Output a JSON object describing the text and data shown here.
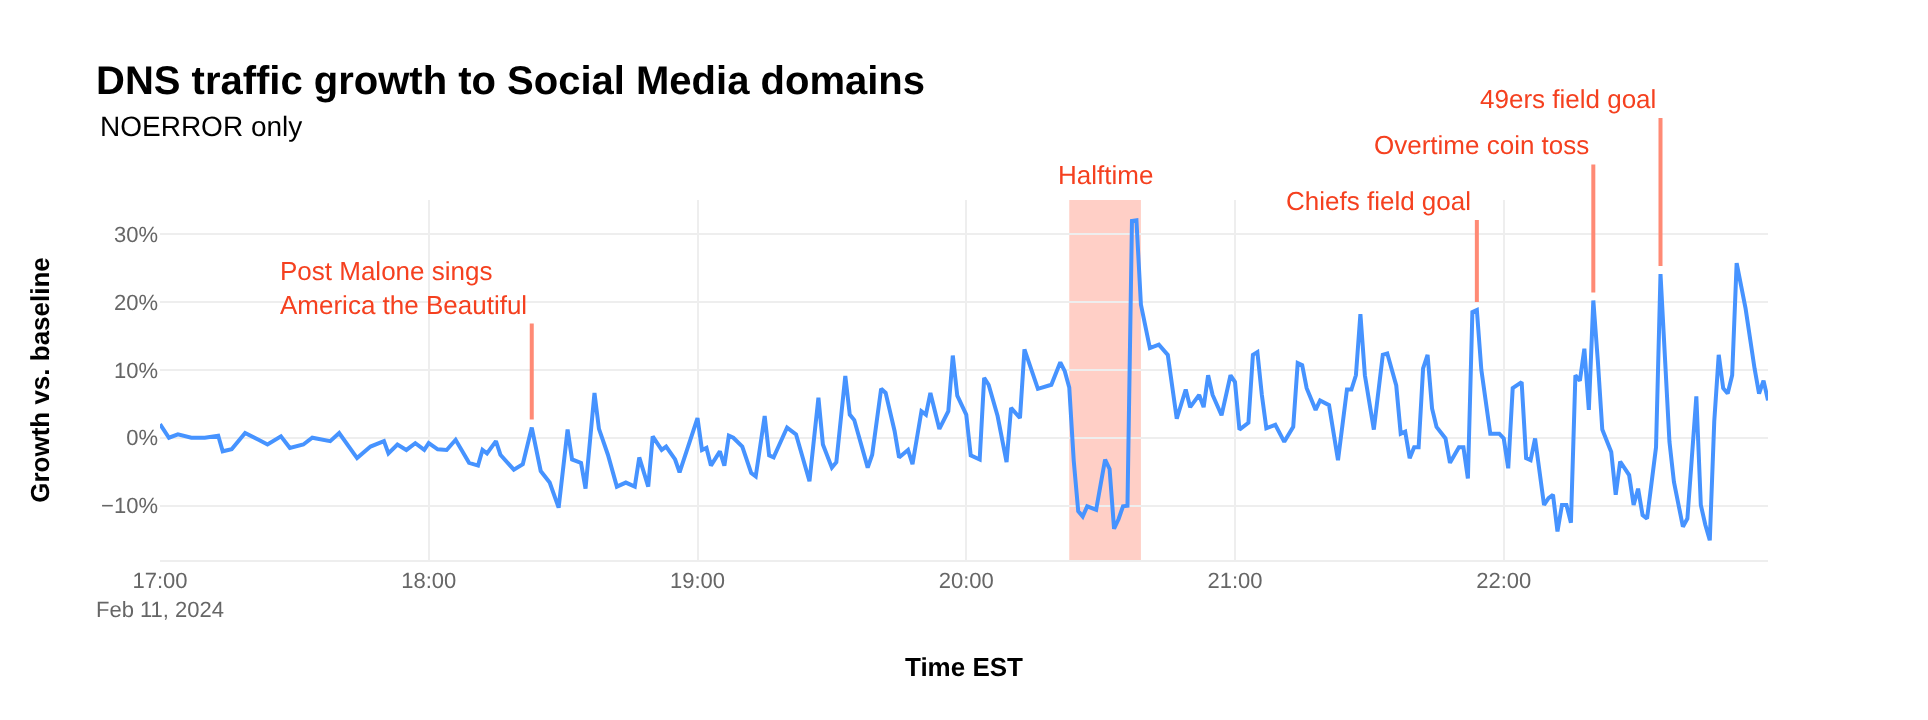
{
  "chart_data": {
    "type": "line",
    "title": "DNS traffic growth to Social Media domains",
    "subtitle": "NOERROR only",
    "xlabel": "Time EST",
    "ylabel": "Growth vs. baseline",
    "x": [
      "2024-02-11T17:00",
      "2024-02-11T17:02",
      "2024-02-11T17:04",
      "2024-02-11T17:07",
      "2024-02-11T17:10",
      "2024-02-11T17:13",
      "2024-02-11T17:14",
      "2024-02-11T17:16",
      "2024-02-11T17:19",
      "2024-02-11T17:22",
      "2024-02-11T17:24",
      "2024-02-11T17:27",
      "2024-02-11T17:29",
      "2024-02-11T17:32",
      "2024-02-11T17:34",
      "2024-02-11T17:38",
      "2024-02-11T17:40",
      "2024-02-11T17:44",
      "2024-02-11T17:47",
      "2024-02-11T17:50",
      "2024-02-11T17:51",
      "2024-02-11T17:53",
      "2024-02-11T17:55",
      "2024-02-11T17:57",
      "2024-02-11T17:59",
      "2024-02-11T18:00",
      "2024-02-11T18:02",
      "2024-02-11T18:04",
      "2024-02-11T18:06",
      "2024-02-11T18:09",
      "2024-02-11T18:11",
      "2024-02-11T18:12",
      "2024-02-11T18:13",
      "2024-02-11T18:15",
      "2024-02-11T18:16",
      "2024-02-11T18:19",
      "2024-02-11T18:21",
      "2024-02-11T18:23",
      "2024-02-11T18:25",
      "2024-02-11T18:27",
      "2024-02-11T18:29",
      "2024-02-11T18:31",
      "2024-02-11T18:32",
      "2024-02-11T18:34",
      "2024-02-11T18:35",
      "2024-02-11T18:37",
      "2024-02-11T18:38",
      "2024-02-11T18:40",
      "2024-02-11T18:42",
      "2024-02-11T18:44",
      "2024-02-11T18:46",
      "2024-02-11T18:47",
      "2024-02-11T18:49",
      "2024-02-11T18:50",
      "2024-02-11T18:52",
      "2024-02-11T18:53",
      "2024-02-11T18:55",
      "2024-02-11T18:56",
      "2024-02-11T19:00",
      "2024-02-11T19:01",
      "2024-02-11T19:02",
      "2024-02-11T19:03",
      "2024-02-11T19:05",
      "2024-02-11T19:06",
      "2024-02-11T19:07",
      "2024-02-11T19:08",
      "2024-02-11T19:10",
      "2024-02-11T19:12",
      "2024-02-11T19:13",
      "2024-02-11T19:15",
      "2024-02-11T19:16",
      "2024-02-11T19:17",
      "2024-02-11T19:20",
      "2024-02-11T19:22",
      "2024-02-11T19:23",
      "2024-02-11T19:25",
      "2024-02-11T19:27",
      "2024-02-11T19:28",
      "2024-02-11T19:30",
      "2024-02-11T19:31",
      "2024-02-11T19:33",
      "2024-02-11T19:34",
      "2024-02-11T19:35",
      "2024-02-11T19:38",
      "2024-02-11T19:39",
      "2024-02-11T19:41",
      "2024-02-11T19:42",
      "2024-02-11T19:44",
      "2024-02-11T19:45",
      "2024-02-11T19:47",
      "2024-02-11T19:48",
      "2024-02-11T19:50",
      "2024-02-11T19:51",
      "2024-02-11T19:52",
      "2024-02-11T19:54",
      "2024-02-11T19:56",
      "2024-02-11T19:57",
      "2024-02-11T19:58",
      "2024-02-11T20:00",
      "2024-02-11T20:01",
      "2024-02-11T20:03",
      "2024-02-11T20:04",
      "2024-02-11T20:05",
      "2024-02-11T20:07",
      "2024-02-11T20:09",
      "2024-02-11T20:10",
      "2024-02-11T20:12",
      "2024-02-11T20:13",
      "2024-02-11T20:16",
      "2024-02-11T20:19",
      "2024-02-11T20:21",
      "2024-02-11T20:22",
      "2024-02-11T20:23",
      "2024-02-11T20:24",
      "2024-02-11T20:25",
      "2024-02-11T20:26",
      "2024-02-11T20:27",
      "2024-02-11T20:29",
      "2024-02-11T20:30",
      "2024-02-11T20:31",
      "2024-02-11T20:32",
      "2024-02-11T20:33",
      "2024-02-11T20:34",
      "2024-02-11T20:35",
      "2024-02-11T20:36",
      "2024-02-11T20:37",
      "2024-02-11T20:38",
      "2024-02-11T20:39",
      "2024-02-11T20:41",
      "2024-02-11T20:43",
      "2024-02-11T20:45",
      "2024-02-11T20:47",
      "2024-02-11T20:49",
      "2024-02-11T20:50",
      "2024-02-11T20:52",
      "2024-02-11T20:53",
      "2024-02-11T20:54",
      "2024-02-11T20:55",
      "2024-02-11T20:57",
      "2024-02-11T20:59",
      "2024-02-11T21:00",
      "2024-02-11T21:01",
      "2024-02-11T21:03",
      "2024-02-11T21:04",
      "2024-02-11T21:05",
      "2024-02-11T21:06",
      "2024-02-11T21:07",
      "2024-02-11T21:09",
      "2024-02-11T21:11",
      "2024-02-11T21:13",
      "2024-02-11T21:14",
      "2024-02-11T21:15",
      "2024-02-11T21:16",
      "2024-02-11T21:18",
      "2024-02-11T21:19",
      "2024-02-11T21:21",
      "2024-02-11T21:23",
      "2024-02-11T21:25",
      "2024-02-11T21:26",
      "2024-02-11T21:27",
      "2024-02-11T21:28",
      "2024-02-11T21:29",
      "2024-02-11T21:31",
      "2024-02-11T21:33",
      "2024-02-11T21:34",
      "2024-02-11T21:36",
      "2024-02-11T21:37",
      "2024-02-11T21:38",
      "2024-02-11T21:39",
      "2024-02-11T21:40",
      "2024-02-11T21:41",
      "2024-02-11T21:42",
      "2024-02-11T21:43",
      "2024-02-11T21:44",
      "2024-02-11T21:45",
      "2024-02-11T21:47",
      "2024-02-11T21:48",
      "2024-02-11T21:50",
      "2024-02-11T21:51",
      "2024-02-11T21:52",
      "2024-02-11T21:53",
      "2024-02-11T21:54",
      "2024-02-11T21:55",
      "2024-02-11T21:57",
      "2024-02-11T21:59",
      "2024-02-11T22:00",
      "2024-02-11T22:01",
      "2024-02-11T22:02",
      "2024-02-11T22:04",
      "2024-02-11T22:05",
      "2024-02-11T22:06",
      "2024-02-11T22:07",
      "2024-02-11T22:09",
      "2024-02-11T22:10",
      "2024-02-11T22:11",
      "2024-02-11T22:12",
      "2024-02-11T22:13",
      "2024-02-11T22:14",
      "2024-02-11T22:15",
      "2024-02-11T22:16",
      "2024-02-11T22:17",
      "2024-02-11T22:18",
      "2024-02-11T22:19",
      "2024-02-11T22:20",
      "2024-02-11T22:21",
      "2024-02-11T22:22",
      "2024-02-11T22:24",
      "2024-02-11T22:25",
      "2024-02-11T22:26",
      "2024-02-11T22:28",
      "2024-02-11T22:29",
      "2024-02-11T22:30",
      "2024-02-11T22:31",
      "2024-02-11T22:32",
      "2024-02-11T22:34",
      "2024-02-11T22:35",
      "2024-02-11T22:37",
      "2024-02-11T22:38",
      "2024-02-11T22:40",
      "2024-02-11T22:41",
      "2024-02-11T22:43",
      "2024-02-11T22:44",
      "2024-02-11T22:45",
      "2024-02-11T22:46",
      "2024-02-11T22:47",
      "2024-02-11T22:48",
      "2024-02-11T22:49",
      "2024-02-11T22:50",
      "2024-02-11T22:51",
      "2024-02-11T22:52",
      "2024-02-11T22:54",
      "2024-02-11T22:56",
      "2024-02-11T22:57",
      "2024-02-11T22:58",
      "2024-02-11T22:59"
    ],
    "series": [
      {
        "color": "#4693ff",
        "values": [
          2,
          0,
          0.5,
          0,
          0,
          0.3,
          -2,
          -1.7,
          0.7,
          -0.3,
          -1,
          0.2,
          -1.5,
          -1,
          0,
          -0.5,
          0.7,
          -3,
          -1.3,
          -0.5,
          -2.3,
          -1,
          -1.8,
          -0.8,
          -1.8,
          -0.8,
          -1.7,
          -1.8,
          -0.3,
          -3.7,
          -4.1,
          -1.8,
          -2.3,
          -0.5,
          -2.5,
          -4.7,
          -3.9,
          1.5,
          -4.9,
          -6.6,
          -10.3,
          1.2,
          -3.2,
          -3.7,
          -7.5,
          6.6,
          1.3,
          -2.5,
          -7.2,
          -6.6,
          -7.2,
          -2.9,
          -7.2,
          0.2,
          -1.8,
          -1.3,
          -3.2,
          -5.1,
          2.9,
          -1.8,
          -1.5,
          -4.1,
          -2,
          -4.1,
          0.3,
          0,
          -1.3,
          -5.2,
          -5.7,
          3.2,
          -2.6,
          -2.9,
          1.5,
          0.5,
          -1.8,
          -6.4,
          5.9,
          -1,
          -4.4,
          -3.6,
          9.1,
          3.4,
          2.6,
          -4.4,
          -2.5,
          7.2,
          6.6,
          1,
          -2.9,
          -1.8,
          -3.9,
          3.9,
          3.4,
          6.6,
          1.3,
          3.9,
          12.1,
          6.2,
          3.4,
          -2.6,
          -3.2,
          8.8,
          7.8,
          3.2,
          -3.6,
          4.4,
          2.9,
          13,
          7.2,
          7.8,
          11.1,
          9.8,
          7.4,
          -3.4,
          -10.8,
          -11.6,
          -10.1,
          -10.6,
          -6.9,
          -3.2,
          -4.6,
          -13.4,
          -12,
          -10.1,
          -10,
          31.9,
          32,
          19.6,
          13.2,
          13.7,
          12.2,
          2.8,
          7.1,
          4.5,
          6.3,
          4.5,
          9.2,
          6.3,
          3.3,
          9.2,
          8.2,
          1.2,
          2.2,
          12.2,
          12.6,
          6.3,
          1.4,
          1.9,
          -0.6,
          1.6,
          11,
          10.7,
          7.3,
          4.1,
          5.5,
          4.8,
          -3.3,
          7.1,
          7.1,
          9.2,
          18.2,
          9.2,
          1.2,
          12.2,
          12.4,
          7.7,
          0.6,
          0.9,
          -3,
          -1.4,
          -1.4,
          10.2,
          12.2,
          4.3,
          1.6,
          -0.1,
          -3.7,
          -1.4,
          -1.4,
          -6,
          18.5,
          18.8,
          10,
          0.6,
          0.6,
          -0.1,
          -4.5,
          7.3,
          8.2,
          -3,
          -3.3,
          -0.1,
          -9.9,
          -8.9,
          -8.4,
          -13.8,
          -9.9,
          -9.9,
          -12.5,
          9.2,
          8.4,
          13.1,
          4.1,
          20.2,
          11.4,
          1.2,
          -2.1,
          -8.4,
          -3.5,
          -5.5,
          -9.9,
          -7.5,
          -11.4,
          -11.9,
          -1.4,
          24.1,
          -0.6,
          -6.5,
          -13.1,
          -11.9,
          6.1,
          -9.9,
          -12.8,
          -15.1,
          2.4,
          12.2,
          7.3,
          6.5,
          9.2,
          25.7,
          19,
          10.2,
          6.5,
          8.4,
          5.5
        ]
      }
    ],
    "xlim": [
      "2024-02-11T17:00",
      "2024-02-11T22:59"
    ],
    "xticks": [
      {
        "value": "2024-02-11T17:00",
        "label": "17:00\nFeb 11, 2024"
      },
      {
        "value": "2024-02-11T18:00",
        "label": "18:00"
      },
      {
        "value": "2024-02-11T19:00",
        "label": "19:00"
      },
      {
        "value": "2024-02-11T20:00",
        "label": "20:00"
      },
      {
        "value": "2024-02-11T21:00",
        "label": "21:00"
      },
      {
        "value": "2024-02-11T22:00",
        "label": "22:00"
      }
    ],
    "ylim": [
      -18,
      35
    ],
    "yticks": [
      {
        "value": -10,
        "label": "−10%"
      },
      {
        "value": 0,
        "label": "0%"
      },
      {
        "value": 10,
        "label": "10%"
      },
      {
        "value": 20,
        "label": "20%"
      },
      {
        "value": 30,
        "label": "30%"
      }
    ],
    "bands": [
      {
        "axis": "x",
        "from": "2024-02-11T20:23",
        "to": "2024-02-11T20:39",
        "label": "Halftime",
        "color": "#ffcfc6"
      }
    ],
    "annotations": [
      {
        "text": "Post Malone sings\nAmerica the Beautiful",
        "x": "2024-02-11T18:23",
        "y": 1.5
      },
      {
        "text": "Chiefs field goal",
        "x": "2024-02-11T21:54",
        "y": 18.8
      },
      {
        "text": "Overtime coin toss",
        "x": "2024-02-11T22:20",
        "y": 20.2
      },
      {
        "text": "49ers field goal",
        "x": "2024-02-11T22:35",
        "y": 24.1
      }
    ],
    "grid": true,
    "marker": "none",
    "line_style": "solid"
  }
}
